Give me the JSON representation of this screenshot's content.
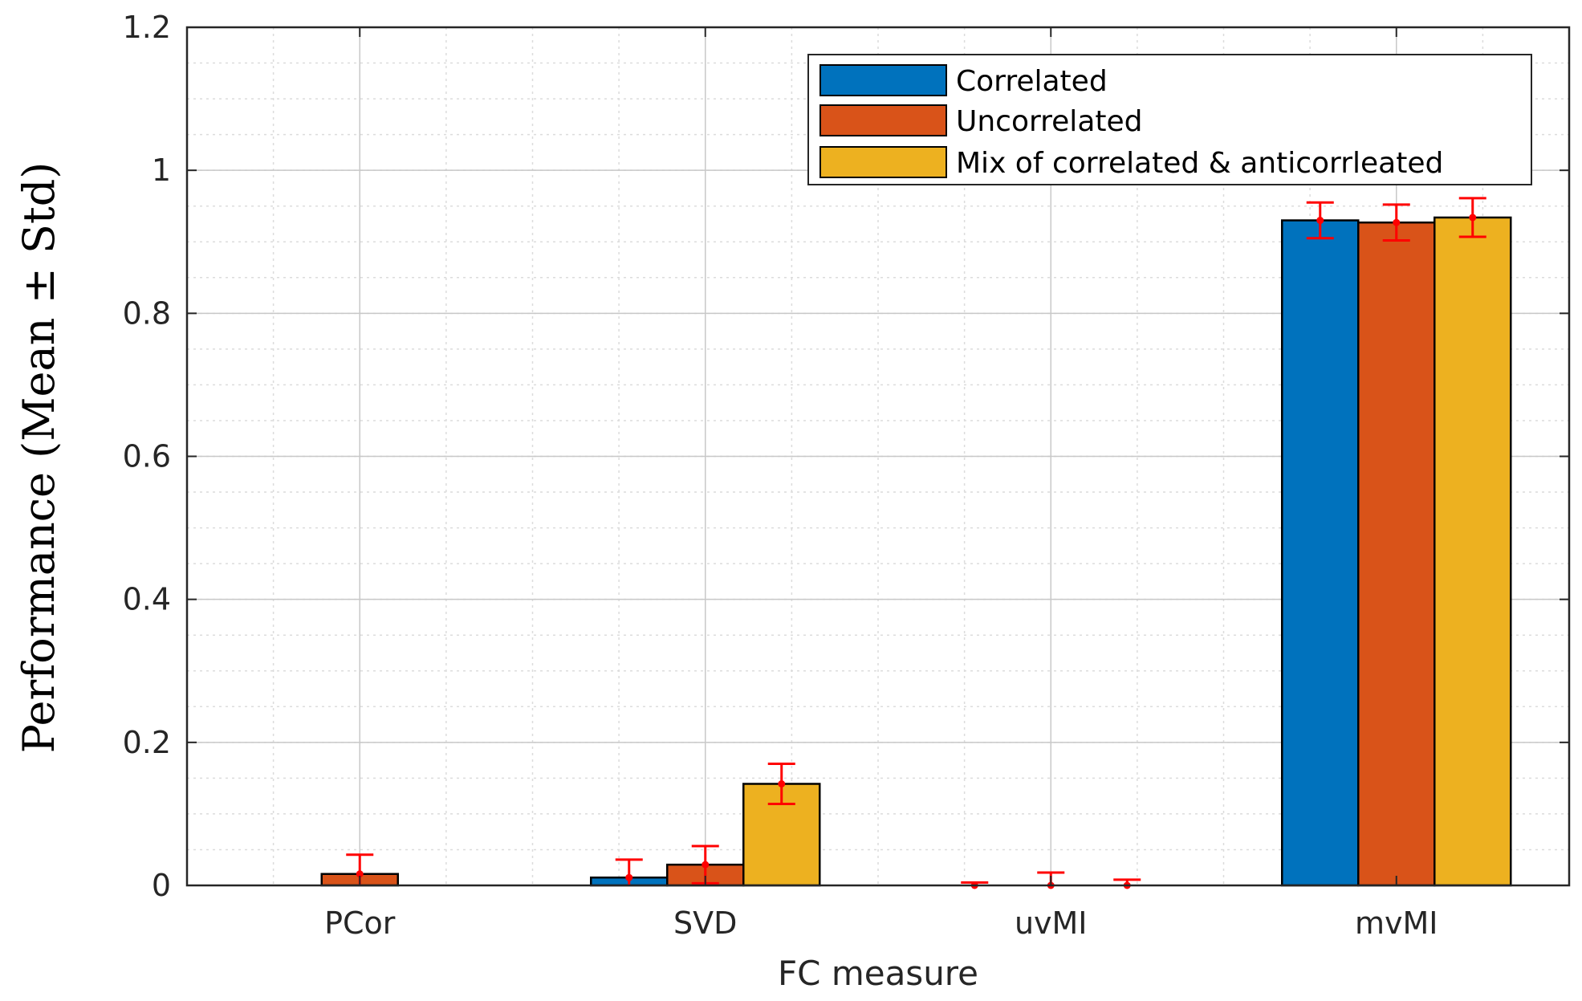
{
  "chart_data": {
    "type": "bar",
    "title": "",
    "xlabel": "FC measure",
    "ylabel": "Performance (Mean ± Std)",
    "categories": [
      "PCor",
      "SVD",
      "uvMI",
      "mvMI"
    ],
    "ylim": [
      0,
      1.2
    ],
    "yticks": [
      0,
      0.2,
      0.4,
      0.6,
      0.8,
      1,
      1.2
    ],
    "ytick_labels": [
      "0",
      "0.2",
      "0.4",
      "0.6",
      "0.8",
      "1",
      "1.2"
    ],
    "grid": true,
    "minor_grid": true,
    "legend_position": "top-right",
    "series": [
      {
        "name": "Correlated",
        "color": "#0072BD",
        "values": [
          0,
          0.011,
          0,
          0.93
        ],
        "std": [
          0,
          0.025,
          0.004,
          0.025
        ]
      },
      {
        "name": "Uncorrelated",
        "color": "#D95319",
        "values": [
          0.016,
          0.029,
          0,
          0.927
        ],
        "std": [
          0.027,
          0.026,
          0.018,
          0.025
        ]
      },
      {
        "name": "Mix of correlated & anticorrleated",
        "color": "#EDB120",
        "values": [
          0,
          0.142,
          0,
          0.934
        ],
        "std": [
          0,
          0.028,
          0.008,
          0.027
        ]
      }
    ],
    "error_bar_color": "#FF0000"
  }
}
